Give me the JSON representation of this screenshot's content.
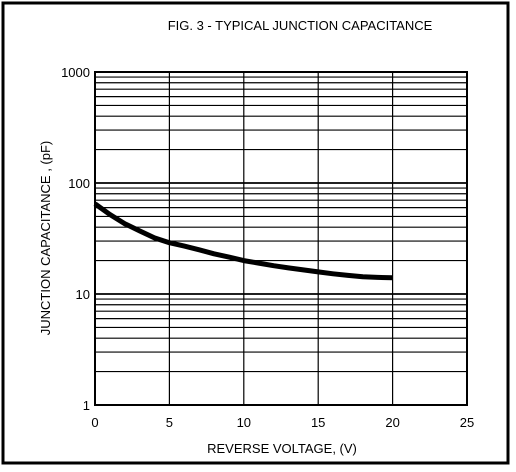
{
  "chart_data": {
    "type": "line",
    "title": "FIG. 3 - TYPICAL JUNCTION CAPACITANCE",
    "xlabel": "REVERSE  VOLTAGE, (V)",
    "ylabel": "JUNCTION CAPACITANCE ,  (pF)",
    "xlim": [
      0,
      25
    ],
    "ylim": [
      1,
      1000
    ],
    "y_scale": "log",
    "grid": true,
    "x_ticks": [
      0,
      5,
      10,
      15,
      20,
      25
    ],
    "x_tick_labels": [
      "0",
      "5",
      "10",
      "15",
      "20",
      "25"
    ],
    "y_ticks": [
      1,
      10,
      100,
      1000
    ],
    "y_tick_labels": [
      "1",
      "10",
      "100",
      "1000"
    ],
    "x": [
      0,
      1,
      2,
      3,
      4,
      5,
      6,
      7,
      8,
      9,
      10,
      11,
      12,
      13,
      14,
      15,
      16,
      17,
      18,
      19,
      20
    ],
    "series": [
      {
        "values": [
          65,
          52,
          43,
          37,
          32,
          29,
          27,
          25,
          23,
          21.5,
          20,
          19,
          18,
          17.2,
          16.5,
          15.8,
          15.2,
          14.7,
          14.3,
          14.1,
          14
        ]
      }
    ],
    "line_color": "#000000"
  }
}
